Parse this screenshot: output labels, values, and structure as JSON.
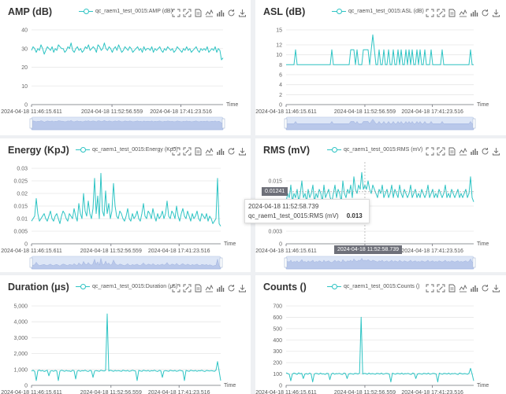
{
  "toolbox_icons": [
    "zoom-icon",
    "zoom-reset-icon",
    "data-view-icon",
    "line-chart-icon",
    "bar-chart-icon",
    "restore-icon",
    "download-icon"
  ],
  "accent_color": "#2ec4c4",
  "chart_data": [
    {
      "id": "amp",
      "type": "line",
      "title": "AMP  (dB)",
      "legend": "qc_raem1_test_0015:AMP  (dB)",
      "xlabel": "Time",
      "ylim": [
        0,
        40
      ],
      "yticks": [
        "0",
        "10",
        "20",
        "30",
        "40"
      ],
      "xticks": [
        "2024-04-18 11:46:15.611",
        "2024-04-18 11:52:56.559",
        "2024-04-18 17:41:23.516"
      ],
      "series_name": "qc_raem1_test_0015:AMP  (dB)",
      "values": [
        29,
        31,
        30,
        28,
        30,
        29,
        32,
        30,
        27,
        29,
        31,
        30,
        29,
        31,
        28,
        30,
        29,
        32,
        31,
        30,
        30,
        28,
        29,
        31,
        30,
        33,
        29,
        28,
        30,
        31,
        29,
        30,
        28,
        29,
        31,
        30,
        32,
        29,
        30,
        31,
        30,
        28,
        32,
        31,
        29,
        30,
        33,
        30,
        29,
        31,
        30,
        28,
        30,
        31,
        29,
        32,
        30,
        28,
        29,
        31,
        30,
        29,
        31,
        30,
        28,
        29,
        30,
        31,
        29,
        30,
        28,
        31,
        29,
        30,
        30,
        29,
        31,
        28,
        30,
        29,
        30,
        31,
        29,
        28,
        30,
        29,
        31,
        30,
        29,
        30,
        28,
        29,
        31,
        30,
        29,
        28,
        30,
        29,
        31,
        29,
        30,
        28,
        29,
        30,
        31,
        29,
        28,
        30,
        29,
        30,
        29,
        31,
        28,
        29,
        30,
        29,
        31,
        28,
        30,
        29,
        24,
        25
      ]
    },
    {
      "id": "asl",
      "type": "line",
      "title": "ASL  (dB)",
      "legend": "qc_raem1_test_0015:ASL  (dB)",
      "xlabel": "Time",
      "ylim": [
        0,
        15
      ],
      "yticks": [
        "0",
        "2",
        "4",
        "6",
        "8",
        "10",
        "12",
        "15"
      ],
      "xticks": [
        "2024-04-18 11:46:15.611",
        "2024-04-18 11:52:56.559",
        "2024-04-18 17:41:23.516"
      ],
      "series_name": "qc_raem1_test_0015:ASL  (dB)",
      "values": [
        8,
        8,
        8,
        8,
        8,
        8,
        11,
        8,
        8,
        8,
        8,
        8,
        8,
        8,
        8,
        8,
        8,
        8,
        8,
        8,
        8,
        8,
        8,
        8,
        8,
        8,
        8,
        8,
        8,
        11,
        8,
        8,
        8,
        8,
        8,
        8,
        8,
        8,
        8,
        8,
        8,
        11,
        11,
        11,
        8,
        11,
        8,
        8,
        8,
        11,
        11,
        11,
        11,
        8,
        11,
        14,
        11,
        8,
        8,
        11,
        8,
        8,
        11,
        8,
        8,
        11,
        8,
        8,
        11,
        8,
        8,
        11,
        8,
        11,
        8,
        8,
        11,
        8,
        11,
        8,
        11,
        8,
        8,
        11,
        8,
        11,
        8,
        8,
        11,
        8,
        8,
        8,
        11,
        8,
        8,
        8,
        8,
        8,
        8,
        11,
        8,
        8,
        8,
        8,
        8,
        8,
        8,
        8,
        8,
        8,
        8,
        8,
        8,
        8,
        8,
        8,
        8,
        11,
        8,
        8
      ]
    },
    {
      "id": "energy",
      "type": "line",
      "title": "Energy  (KpJ)",
      "legend": "qc_raem1_test_0015:Energy  (KpJ)",
      "xlabel": "Time",
      "ylim": [
        0,
        0.03
      ],
      "yticks": [
        "0",
        "0.005",
        "0.01",
        "0.015",
        "0.02",
        "0.025",
        "0.03"
      ],
      "xticks": [
        "2024-04-18 11:46:15.611",
        "2024-04-18 11:52:56.559",
        "2024-04-18 17:41:23.516"
      ],
      "series_name": "qc_raem1_test_0015:Energy  (KpJ)",
      "values": [
        0.009,
        0.01,
        0.011,
        0.018,
        0.012,
        0.009,
        0.01,
        0.011,
        0.012,
        0.01,
        0.009,
        0.011,
        0.013,
        0.01,
        0.009,
        0.011,
        0.012,
        0.01,
        0.008,
        0.011,
        0.013,
        0.012,
        0.01,
        0.009,
        0.012,
        0.011,
        0.01,
        0.014,
        0.011,
        0.009,
        0.016,
        0.012,
        0.01,
        0.02,
        0.013,
        0.011,
        0.017,
        0.012,
        0.01,
        0.014,
        0.026,
        0.012,
        0.019,
        0.01,
        0.028,
        0.013,
        0.011,
        0.021,
        0.012,
        0.016,
        0.01,
        0.013,
        0.024,
        0.015,
        0.011,
        0.01,
        0.013,
        0.012,
        0.01,
        0.009,
        0.011,
        0.014,
        0.01,
        0.009,
        0.012,
        0.01,
        0.011,
        0.013,
        0.01,
        0.009,
        0.012,
        0.016,
        0.011,
        0.01,
        0.013,
        0.012,
        0.01,
        0.014,
        0.011,
        0.009,
        0.012,
        0.01,
        0.011,
        0.013,
        0.01,
        0.012,
        0.017,
        0.011,
        0.01,
        0.013,
        0.012,
        0.01,
        0.015,
        0.011,
        0.009,
        0.012,
        0.014,
        0.011,
        0.01,
        0.013,
        0.011,
        0.009,
        0.012,
        0.01,
        0.011,
        0.013,
        0.01,
        0.009,
        0.012,
        0.011,
        0.01,
        0.012,
        0.009,
        0.011,
        0.01,
        0.008,
        0.009,
        0.01,
        0.026,
        0.008,
        0.007
      ]
    },
    {
      "id": "rms",
      "type": "line",
      "title": "RMS  (mV)",
      "legend": "qc_raem1_test_0015:RMS  (mV)",
      "xlabel": "Time",
      "ylim": [
        0,
        0.018
      ],
      "yticks": [
        "0",
        "0.003",
        "0.009",
        "0.012",
        "0.015"
      ],
      "xticks": [
        "2024-04-18 11:46:15.611",
        "2024-04-18 11:52:56.559",
        "2024-04-18 17:41:23.516"
      ],
      "series_name": "qc_raem1_test_0015:RMS  (mV)",
      "values": [
        0.01,
        0.012,
        0.011,
        0.014,
        0.01,
        0.012,
        0.011,
        0.013,
        0.01,
        0.012,
        0.015,
        0.011,
        0.012,
        0.01,
        0.013,
        0.011,
        0.012,
        0.014,
        0.01,
        0.012,
        0.011,
        0.013,
        0.012,
        0.01,
        0.014,
        0.011,
        0.012,
        0.013,
        0.011,
        0.01,
        0.012,
        0.014,
        0.011,
        0.013,
        0.012,
        0.01,
        0.015,
        0.012,
        0.011,
        0.013,
        0.012,
        0.014,
        0.011,
        0.016,
        0.013,
        0.012,
        0.014,
        0.013,
        0.017,
        0.013,
        0.014,
        0.013,
        0.015,
        0.013,
        0.012,
        0.014,
        0.013,
        0.012,
        0.011,
        0.013,
        0.012,
        0.014,
        0.011,
        0.012,
        0.013,
        0.011,
        0.012,
        0.014,
        0.011,
        0.013,
        0.012,
        0.011,
        0.014,
        0.012,
        0.011,
        0.013,
        0.012,
        0.011,
        0.012,
        0.014,
        0.011,
        0.012,
        0.013,
        0.011,
        0.012,
        0.011,
        0.013,
        0.012,
        0.011,
        0.012,
        0.014,
        0.011,
        0.012,
        0.013,
        0.011,
        0.012,
        0.011,
        0.013,
        0.012,
        0.011,
        0.012,
        0.014,
        0.011,
        0.012,
        0.011,
        0.013,
        0.012,
        0.011,
        0.012,
        0.013,
        0.011,
        0.012,
        0.011,
        0.012,
        0.013,
        0.011,
        0.012,
        0.016,
        0.011,
        0.01
      ],
      "tooltip": {
        "time": "2024-04-18 11:52:58.739",
        "series": "qc_raem1_test_0015:RMS  (mV)",
        "value": "0.013",
        "axis_value": "0.01241",
        "axis_time": "2024-04-18 11:52:58.739"
      }
    },
    {
      "id": "duration",
      "type": "line",
      "title": "Duration  (μs)",
      "legend": "qc_raem1_test_0015:Duration  (μs)",
      "xlabel": "Time",
      "ylim": [
        0,
        5000
      ],
      "yticks": [
        "0",
        "1,000",
        "2,000",
        "3,000",
        "4,000",
        "5,000"
      ],
      "xticks": [
        "2024-04-18 11:46:15.611",
        "2024-04-18 11:52:56.559",
        "2024-04-18 17:41:23.516"
      ],
      "series_name": "qc_raem1_test_0015:Duration  (μs)",
      "values": [
        900,
        950,
        880,
        300,
        920,
        960,
        900,
        940,
        870,
        910,
        950,
        600,
        900,
        930,
        880,
        940,
        910,
        300,
        900,
        950,
        920,
        880,
        940,
        900,
        910,
        870,
        950,
        920,
        400,
        900,
        940,
        880,
        930,
        910,
        950,
        900,
        870,
        940,
        920,
        500,
        900,
        930,
        910,
        880,
        950,
        920,
        900,
        940,
        4500,
        900,
        950,
        920,
        880,
        940,
        900,
        930,
        910,
        880,
        950,
        920,
        900,
        940,
        880,
        910,
        950,
        920,
        900,
        300,
        940,
        910,
        880,
        950,
        920,
        900,
        940,
        880,
        930,
        910,
        950,
        900,
        870,
        940,
        920,
        500,
        900,
        930,
        910,
        880,
        950,
        920,
        900,
        940,
        880,
        910,
        950,
        920,
        900,
        300,
        940,
        910,
        880,
        950,
        920,
        900,
        940,
        880,
        930,
        910,
        950,
        900,
        870,
        940,
        920,
        900,
        930,
        910,
        880,
        950,
        1500,
        900,
        300
      ]
    },
    {
      "id": "counts",
      "type": "line",
      "title": "Counts  ()",
      "legend": "qc_raem1_test_0015:Counts  ()",
      "xlabel": "Time",
      "ylim": [
        0,
        700
      ],
      "yticks": [
        "0",
        "100",
        "200",
        "300",
        "400",
        "500",
        "600",
        "700"
      ],
      "xticks": [
        "2024-04-18 11:46:15.611",
        "2024-04-18 11:52:56.559",
        "2024-04-18 17:41:23.516"
      ],
      "series_name": "qc_raem1_test_0015:Counts  ()",
      "values": [
        110,
        105,
        98,
        40,
        100,
        108,
        104,
        96,
        110,
        102,
        106,
        60,
        100,
        104,
        98,
        108,
        102,
        30,
        100,
        106,
        104,
        98,
        108,
        100,
        102,
        96,
        106,
        104,
        50,
        100,
        108,
        98,
        104,
        102,
        106,
        100,
        96,
        108,
        104,
        60,
        100,
        104,
        102,
        98,
        106,
        104,
        100,
        108,
        600,
        100,
        106,
        104,
        98,
        108,
        100,
        104,
        102,
        98,
        106,
        104,
        100,
        108,
        98,
        102,
        106,
        104,
        100,
        30,
        108,
        102,
        98,
        106,
        104,
        100,
        108,
        98,
        104,
        102,
        106,
        100,
        96,
        108,
        104,
        60,
        100,
        104,
        102,
        98,
        106,
        104,
        100,
        108,
        98,
        102,
        106,
        104,
        100,
        30,
        108,
        102,
        98,
        106,
        104,
        100,
        108,
        98,
        104,
        102,
        106,
        100,
        96,
        108,
        104,
        100,
        104,
        102,
        98,
        106,
        150,
        100,
        40
      ]
    }
  ]
}
